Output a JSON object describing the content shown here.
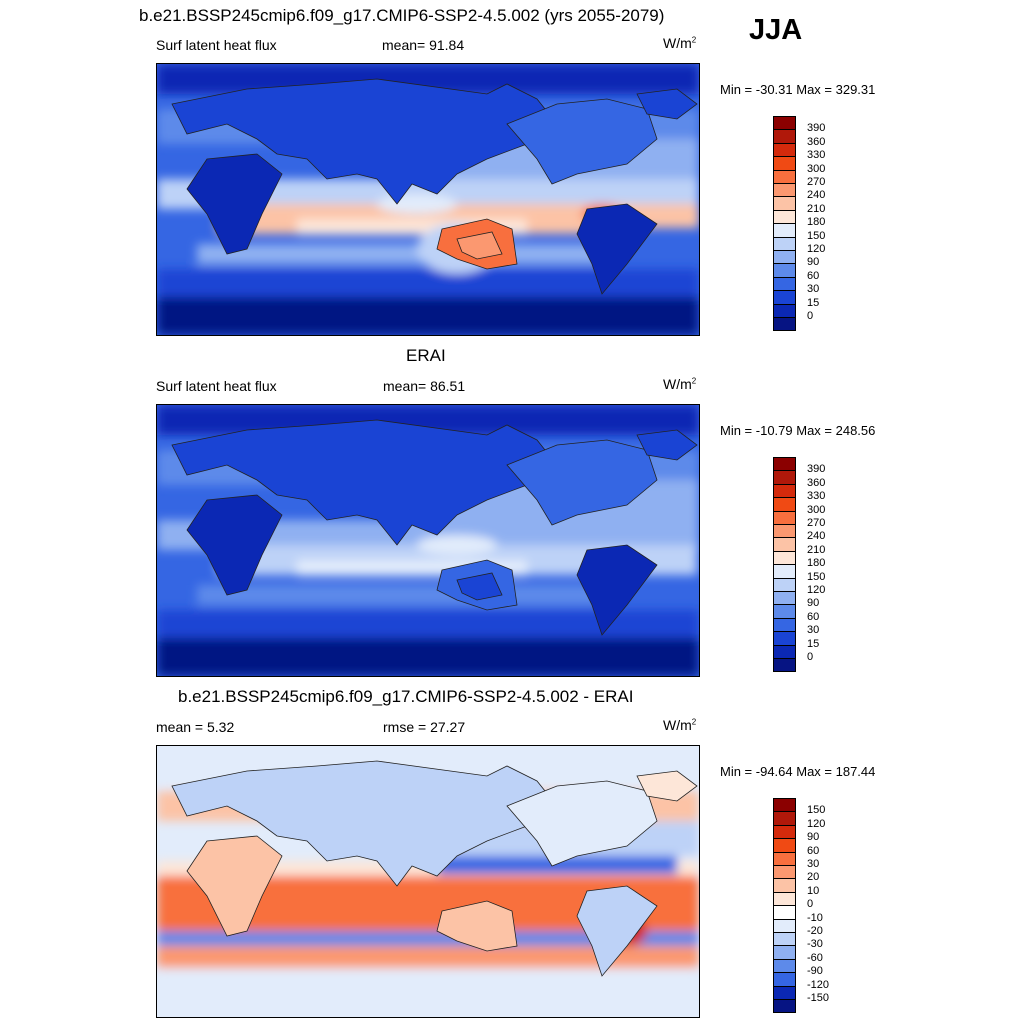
{
  "season": "JJA",
  "panels": [
    {
      "id": "model",
      "title": "b.e21.BSSP245cmip6.f09_g17.CMIP6-SSP2-4.5.002 (yrs 2055-2079)",
      "left_label": "Surf latent heat flux",
      "center_label": "mean=  91.84",
      "units_base": "W/m",
      "units_exp": "2",
      "minmax": "Min = -30.31 Max = 329.31",
      "legend_labels": [
        "390",
        "360",
        "330",
        "300",
        "270",
        "240",
        "210",
        "180",
        "150",
        "120",
        "90",
        "60",
        "30",
        "15",
        "0"
      ],
      "legend_colors": [
        "#8b0000",
        "#b0180a",
        "#d42a0c",
        "#f04a14",
        "#f86f3e",
        "#fb9870",
        "#fcc3a6",
        "#fde6d8",
        "#e2ecfb",
        "#bdd2f7",
        "#8fb0f1",
        "#5d8aea",
        "#3566e3",
        "#1a44d4",
        "#0b28b4",
        "#061483"
      ]
    },
    {
      "id": "obs",
      "title": "ERAI",
      "left_label": "Surf latent heat flux",
      "center_label": "mean=  86.51",
      "units_base": "W/m",
      "units_exp": "2",
      "minmax": "Min = -10.79 Max = 248.56",
      "legend_labels": [
        "390",
        "360",
        "330",
        "300",
        "270",
        "240",
        "210",
        "180",
        "150",
        "120",
        "90",
        "60",
        "30",
        "15",
        "0"
      ],
      "legend_colors": [
        "#8b0000",
        "#b0180a",
        "#d42a0c",
        "#f04a14",
        "#f86f3e",
        "#fb9870",
        "#fcc3a6",
        "#fde6d8",
        "#e2ecfb",
        "#bdd2f7",
        "#8fb0f1",
        "#5d8aea",
        "#3566e3",
        "#1a44d4",
        "#0b28b4",
        "#061483"
      ]
    },
    {
      "id": "diff",
      "title": "b.e21.BSSP245cmip6.f09_g17.CMIP6-SSP2-4.5.002 - ERAI",
      "left_label": "mean =   5.32",
      "center_label": "rmse =  27.27",
      "units_base": "W/m",
      "units_exp": "2",
      "minmax": "Min = -94.64 Max = 187.44",
      "legend_labels": [
        "150",
        "120",
        "90",
        "60",
        "30",
        "20",
        "10",
        "0",
        "-10",
        "-20",
        "-30",
        "-60",
        "-90",
        "-120",
        "-150"
      ],
      "legend_colors": [
        "#8b0000",
        "#b0180a",
        "#d42a0c",
        "#f04a14",
        "#f86f3e",
        "#fb9870",
        "#fcc3a6",
        "#fde6d8",
        "#ffffff",
        "#e2ecfb",
        "#bdd2f7",
        "#8fb0f1",
        "#5d8aea",
        "#3566e3",
        "#0b28b4",
        "#061483"
      ]
    }
  ]
}
